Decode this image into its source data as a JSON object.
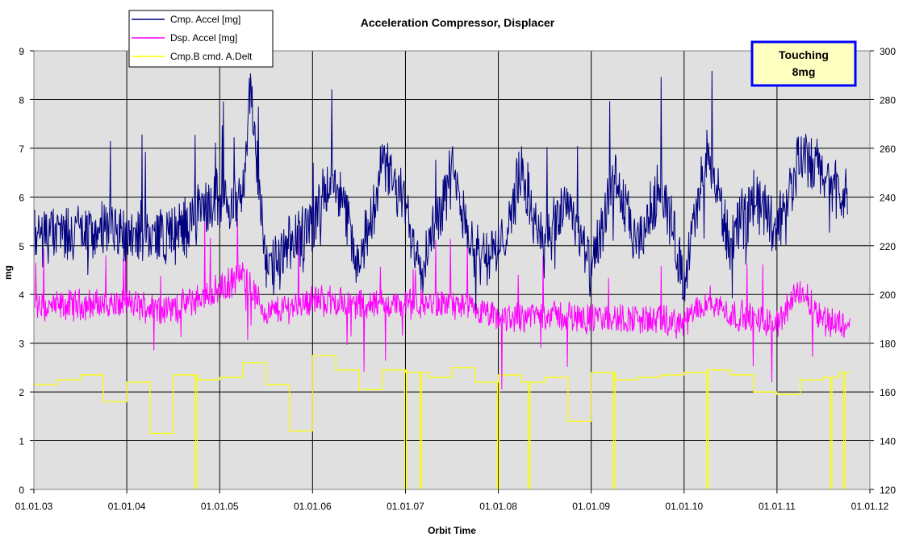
{
  "chart_data": {
    "type": "line",
    "title": "Acceleration Compressor, Displacer",
    "xlabel": "Orbit Time",
    "ylabel": "mg",
    "x_ticks": [
      "01.01.03",
      "01.01.04",
      "01.01.05",
      "01.01.06",
      "01.01.07",
      "01.01.08",
      "01.01.09",
      "01.01.10",
      "01.01.11",
      "01.01.12"
    ],
    "ylim": [
      0,
      9
    ],
    "y_ticks": [
      "0",
      "1",
      "2",
      "3",
      "4",
      "5",
      "6",
      "7",
      "8",
      "9"
    ],
    "y2lim": [
      120,
      300
    ],
    "y2_ticks": [
      "120",
      "140",
      "160",
      "180",
      "200",
      "220",
      "240",
      "260",
      "280",
      "300"
    ],
    "grid": true,
    "legend_position": "top-left",
    "annotation": {
      "line1": "Touching",
      "line2": "8mg"
    },
    "series": [
      {
        "name": "Cmp. Accel [mg]",
        "color": "#000080",
        "axis": "left",
        "x": [
          "01.01.03",
          "01.07.03",
          "01.01.04",
          "01.07.04",
          "01.01.05",
          "01.04.05",
          "01.05.05",
          "01.07.05",
          "01.01.06",
          "01.04.06",
          "01.07.06",
          "01.10.06",
          "01.01.07",
          "01.03.07",
          "01.07.07",
          "01.10.07",
          "01.01.08",
          "01.04.08",
          "01.07.08",
          "01.10.08",
          "01.01.09",
          "01.04.09",
          "01.07.09",
          "01.10.09",
          "01.01.10",
          "01.04.10",
          "01.07.10",
          "01.10.10",
          "01.01.11",
          "01.04.11",
          "01.07.11",
          "01.09.11"
        ],
        "values": [
          5.2,
          5.3,
          5.3,
          5.2,
          6.0,
          5.9,
          8.4,
          4.4,
          5.5,
          6.5,
          4.5,
          6.7,
          5.8,
          4.6,
          6.5,
          4.9,
          4.8,
          6.5,
          4.9,
          6.0,
          4.4,
          6.4,
          4.9,
          6.3,
          4.3,
          6.9,
          5.0,
          6.0,
          5.4,
          6.8,
          6.5,
          6.0
        ]
      },
      {
        "name": "Dsp. Accel [mg]",
        "color": "#ff00ff",
        "axis": "left",
        "x": [
          "01.01.03",
          "01.07.03",
          "01.01.04",
          "01.07.04",
          "01.01.05",
          "01.04.05",
          "01.07.05",
          "01.01.06",
          "01.07.06",
          "01.01.07",
          "01.07.07",
          "01.01.08",
          "01.07.08",
          "01.01.09",
          "01.07.09",
          "01.01.10",
          "01.04.10",
          "01.07.10",
          "01.01.11",
          "01.04.11",
          "01.07.11",
          "01.09.11"
        ],
        "values": [
          3.7,
          3.8,
          3.8,
          3.7,
          4.1,
          4.4,
          3.6,
          3.9,
          3.8,
          3.8,
          3.8,
          3.5,
          3.6,
          3.5,
          3.5,
          3.4,
          3.9,
          3.6,
          3.4,
          4.1,
          3.5,
          3.4
        ]
      },
      {
        "name": "Cmp.B cmd. A.Delt",
        "color": "#ffff00",
        "axis": "right",
        "x": [
          "01.01.03",
          "01.04.03",
          "01.07.03",
          "01.10.03",
          "01.01.04",
          "01.04.04",
          "01.07.04",
          "01.10.04",
          "01.01.05",
          "01.04.05",
          "01.07.05",
          "01.10.05",
          "01.01.06",
          "01.04.06",
          "01.07.06",
          "01.10.06",
          "01.01.07",
          "01.04.07",
          "01.07.07",
          "01.10.07",
          "01.01.08",
          "01.04.08",
          "01.07.08",
          "01.10.08",
          "01.01.09",
          "01.04.09",
          "01.07.09",
          "01.10.09",
          "01.01.10",
          "01.04.10",
          "01.07.10",
          "01.10.10",
          "01.01.11",
          "01.04.11",
          "01.07.11",
          "01.09.11"
        ],
        "values": [
          163,
          165,
          167,
          156,
          164,
          143,
          167,
          165,
          166,
          172,
          163,
          144,
          175,
          169,
          161,
          169,
          168,
          166,
          170,
          164,
          167,
          164,
          166,
          148,
          168,
          165,
          166,
          167,
          168,
          169,
          167,
          160,
          159,
          165,
          166,
          168
        ]
      }
    ]
  }
}
